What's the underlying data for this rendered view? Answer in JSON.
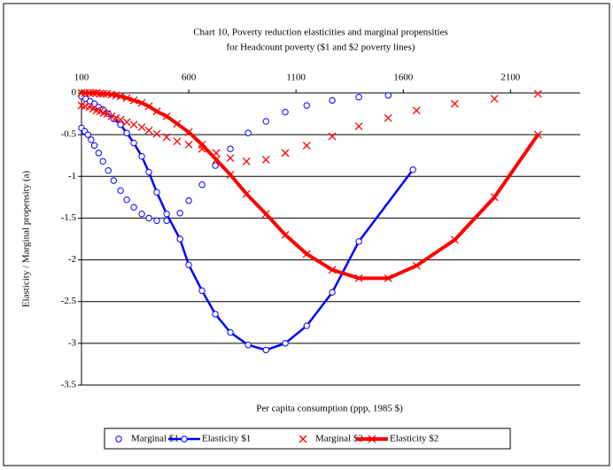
{
  "chart_data": {
    "type": "scatter",
    "title": "Chart 10,  Poverty reduction elasticities and marginal propensities",
    "subtitle": "for Headcount poverty ($1 and $2 poverty lines)",
    "x_label": "Per capita consumption (ppp, 1985 $)",
    "y_label": "Elasticity / Marginal propensity (a)",
    "xlim": [
      100,
      2425
    ],
    "xticks": [
      100,
      600,
      1100,
      1600,
      2100
    ],
    "ylim": [
      -3.5,
      0
    ],
    "yticks": [
      0,
      -0.5,
      -1,
      -1.5,
      -2,
      -2.5,
      -3,
      -3.5
    ],
    "grid": true,
    "legend": "bottom",
    "series": [
      {
        "name": "Marginal $1",
        "color": "#0000ff",
        "marker": "circle",
        "line": false,
        "x": [
          100,
          115,
          130,
          145,
          160,
          180,
          200,
          225,
          250,
          282,
          311,
          344,
          381,
          414,
          451,
          497,
          559,
          600,
          662,
          724,
          794,
          877,
          960,
          1050,
          1150,
          1269,
          1393,
          1530
        ],
        "values": [
          -0.42,
          -0.46,
          -0.5,
          -0.56,
          -0.63,
          -0.72,
          -0.82,
          -0.93,
          -1.05,
          -1.17,
          -1.28,
          -1.37,
          -1.45,
          -1.5,
          -1.53,
          -1.53,
          -1.44,
          -1.29,
          -1.1,
          -0.87,
          -0.67,
          -0.48,
          -0.34,
          -0.23,
          -0.15,
          -0.09,
          -0.05,
          -0.03
        ]
      },
      {
        "name": "Elasticity $1",
        "color": "#0000ff",
        "marker": "circle",
        "line": true,
        "x": [
          100,
          120,
          140,
          160,
          180,
          200,
          225,
          250,
          282,
          311,
          344,
          381,
          414,
          451,
          497,
          559,
          600,
          662,
          724,
          794,
          877,
          960,
          1050,
          1150,
          1269,
          1393,
          1645
        ],
        "values": [
          -0.04,
          -0.07,
          -0.1,
          -0.13,
          -0.17,
          -0.2,
          -0.25,
          -0.31,
          -0.38,
          -0.48,
          -0.6,
          -0.76,
          -0.95,
          -1.19,
          -1.45,
          -1.75,
          -2.06,
          -2.37,
          -2.65,
          -2.87,
          -3.02,
          -3.08,
          -3.0,
          -2.79,
          -2.39,
          -1.78,
          -0.92
        ]
      },
      {
        "name": "Marginal $2",
        "color": "#ff0000",
        "marker": "x",
        "line": false,
        "x": [
          100,
          117,
          137,
          154,
          170,
          187,
          203,
          220,
          240,
          261,
          282,
          311,
          344,
          381,
          414,
          451,
          497,
          546,
          600,
          662,
          728,
          794,
          869,
          960,
          1050,
          1150,
          1269,
          1393,
          1530,
          1662,
          1840,
          2025,
          2228
        ],
        "values": [
          -0.15,
          -0.16,
          -0.17,
          -0.19,
          -0.21,
          -0.22,
          -0.24,
          -0.25,
          -0.28,
          -0.3,
          -0.32,
          -0.35,
          -0.38,
          -0.41,
          -0.45,
          -0.49,
          -0.53,
          -0.58,
          -0.62,
          -0.67,
          -0.72,
          -0.78,
          -0.82,
          -0.8,
          -0.72,
          -0.63,
          -0.52,
          -0.4,
          -0.3,
          -0.21,
          -0.13,
          -0.07,
          -0.01
        ]
      },
      {
        "name": "Elasticity $2",
        "color": "#ff0000",
        "marker": "x",
        "line": true,
        "x": [
          100,
          117,
          137,
          154,
          170,
          187,
          203,
          220,
          240,
          261,
          282,
          311,
          344,
          381,
          414,
          451,
          497,
          546,
          600,
          662,
          728,
          794,
          869,
          960,
          1050,
          1150,
          1269,
          1393,
          1530,
          1662,
          1840,
          2025,
          2228
        ],
        "values": [
          0,
          0,
          0,
          0,
          0,
          -0.01,
          -0.01,
          -0.01,
          -0.02,
          -0.03,
          -0.04,
          -0.06,
          -0.09,
          -0.12,
          -0.16,
          -0.22,
          -0.28,
          -0.37,
          -0.47,
          -0.62,
          -0.8,
          -0.98,
          -1.21,
          -1.45,
          -1.7,
          -1.93,
          -2.12,
          -2.22,
          -2.22,
          -2.07,
          -1.76,
          -1.25,
          -0.5
        ]
      }
    ]
  }
}
